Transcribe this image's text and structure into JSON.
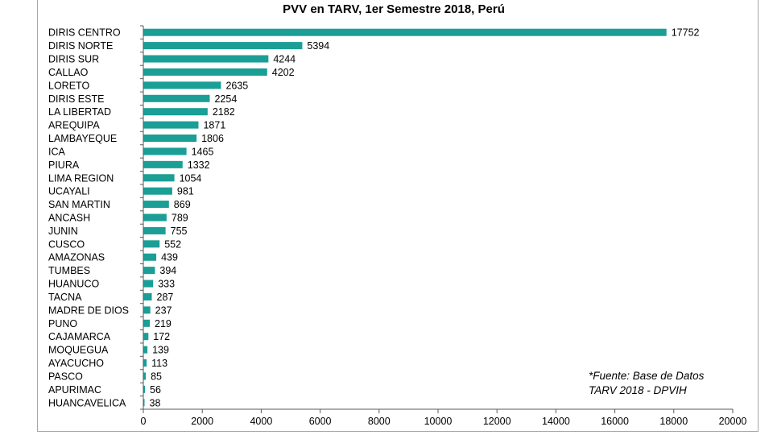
{
  "chart_data": {
    "type": "bar",
    "orientation": "horizontal",
    "title": "PVV en TARV, 1er Semestre 2018, Perú",
    "categories": [
      "DIRIS CENTRO",
      "DIRIS NORTE",
      "DIRIS SUR",
      "CALLAO",
      "LORETO",
      "DIRIS ESTE",
      "LA LIBERTAD",
      "AREQUIPA",
      "LAMBAYEQUE",
      "ICA",
      "PIURA",
      "LIMA REGION",
      "UCAYALI",
      "SAN MARTIN",
      "ANCASH",
      "JUNIN",
      "CUSCO",
      "AMAZONAS",
      "TUMBES",
      "HUANUCO",
      "TACNA",
      "MADRE DE DIOS",
      "PUNO",
      "CAJAMARCA",
      "MOQUEGUA",
      "AYACUCHO",
      "PASCO",
      "APURIMAC",
      "HUANCAVELICA"
    ],
    "values": [
      17752,
      5394,
      4244,
      4202,
      2635,
      2254,
      2182,
      1871,
      1806,
      1465,
      1332,
      1054,
      981,
      869,
      789,
      755,
      552,
      439,
      394,
      333,
      287,
      237,
      219,
      172,
      139,
      113,
      85,
      56,
      38
    ],
    "xlim": [
      0,
      20000
    ],
    "xticks": [
      0,
      2000,
      4000,
      6000,
      8000,
      10000,
      12000,
      14000,
      16000,
      18000,
      20000
    ],
    "xlabel": "",
    "ylabel": "",
    "bar_color": "#1a9e96",
    "grid": false,
    "legend": false
  },
  "note": {
    "line1": "*Fuente: Base de Datos",
    "line2": "TARV 2018 - DPVIH"
  }
}
